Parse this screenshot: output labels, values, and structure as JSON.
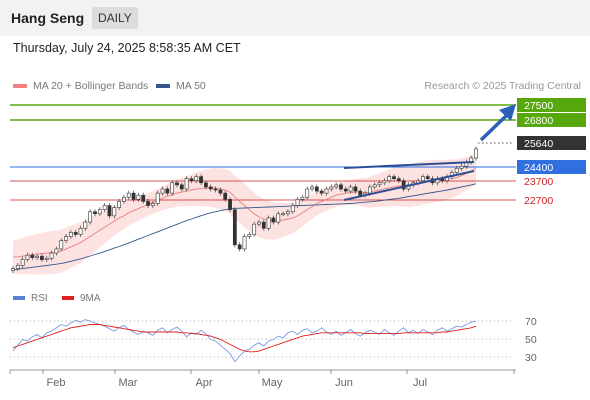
{
  "header": {
    "title": "Hang Seng",
    "timeframe": "DAILY"
  },
  "timestamp": "Thursday, July 24, 2025 8:58:35 AM CET",
  "legend": {
    "bollinger": {
      "label": "MA 20 + Bollinger Bands",
      "color": "#f08080"
    },
    "ma50": {
      "label": "MA 50",
      "color": "#34578c"
    }
  },
  "credit": "Research © 2025 Trading Central",
  "rsi_legend": {
    "rsi": {
      "label": "RSI",
      "color": "#5b7fd4"
    },
    "ma9": {
      "label": "9MA",
      "color": "#e02020"
    }
  },
  "price_levels": [
    {
      "value": "27500",
      "style": "green-box",
      "color": "#56a80d"
    },
    {
      "value": "26800",
      "style": "green-box",
      "color": "#56a80d"
    },
    {
      "value": "25640",
      "style": "dark-box",
      "color": "#333333"
    },
    {
      "value": "24400",
      "style": "blue-box",
      "color": "#2f6fe0"
    },
    {
      "value": "23700",
      "style": "red-text",
      "color": "#cc2222"
    },
    {
      "value": "22700",
      "style": "red-text",
      "color": "#cc2222"
    }
  ],
  "rsi_ticks": [
    "70",
    "50",
    "30"
  ],
  "x_axis": [
    "Feb",
    "Mar",
    "Apr",
    "May",
    "Jun",
    "Jul"
  ],
  "chart_data": {
    "type": "line",
    "close": [
      19850,
      20000,
      20300,
      20500,
      20380,
      20450,
      20280,
      20350,
      20600,
      20800,
      21200,
      21400,
      21600,
      21500,
      21800,
      22100,
      22600,
      22500,
      22700,
      22900,
      22400,
      22800,
      23100,
      23300,
      23500,
      23200,
      23400,
      23100,
      22900,
      23000,
      23500,
      23700,
      23500,
      24000,
      23900,
      23700,
      24200,
      24100,
      24300,
      24000,
      23800,
      23700,
      23650,
      23500,
      23200,
      22700,
      21000,
      20800,
      21400,
      21500,
      22000,
      22100,
      21800,
      22300,
      22100,
      22500,
      22500,
      22600,
      22900,
      23200,
      23300,
      23700,
      23800,
      23600,
      23500,
      23700,
      23800,
      23900,
      23700,
      23600,
      23800,
      23600,
      23400,
      23500,
      23800,
      23900,
      24000,
      24100,
      24300,
      24200,
      24100,
      23700,
      23900,
      24000,
      24100,
      24300,
      24200,
      24000,
      24200,
      24100,
      24300,
      24500,
      24700,
      24800,
      25000,
      25200,
      25640
    ],
    "ma20": [
      20400,
      20420,
      20450,
      20500,
      20520,
      20550,
      20580,
      20600,
      20620,
      20650,
      20700,
      20800,
      20900,
      21000,
      21100,
      21250,
      21400,
      21550,
      21700,
      21850,
      22000,
      22150,
      22300,
      22400,
      22550,
      22650,
      22750,
      22850,
      22950,
      23050,
      23150,
      23250,
      23350,
      23400,
      23500,
      23550,
      23600,
      23650,
      23700,
      23720,
      23750,
      23760,
      23750,
      23700,
      23650,
      23550,
      23300,
      23100,
      22900,
      22700,
      22500,
      22350,
      22250,
      22200,
      22150,
      22150,
      22200,
      22250,
      22300,
      22400,
      22550,
      22700,
      22850,
      23000,
      23100,
      23200,
      23300,
      23400,
      23450,
      23500,
      23520,
      23550,
      23550,
      23520,
      23550,
      23600,
      23650,
      23700,
      23750,
      23800,
      23850,
      23850,
      23850,
      23900,
      23950,
      24000,
      24050,
      24050,
      24100,
      24100,
      24150,
      24200,
      24250,
      24350,
      24450,
      24550,
      24700
    ],
    "ma50": [
      19800,
      19820,
      19850,
      19880,
      19910,
      19940,
      19970,
      20000,
      20030,
      20060,
      20100,
      20150,
      20200,
      20260,
      20320,
      20390,
      20460,
      20530,
      20600,
      20680,
      20760,
      20840,
      20920,
      21000,
      21090,
      21180,
      21270,
      21360,
      21450,
      21540,
      21630,
      21720,
      21810,
      21900,
      21990,
      22080,
      22170,
      22250,
      22330,
      22410,
      22480,
      22550,
      22600,
      22650,
      22700,
      22740,
      22760,
      22770,
      22780,
      22790,
      22800,
      22810,
      22820,
      22830,
      22840,
      22850,
      22860,
      22870,
      22880,
      22890,
      22900,
      22910,
      22920,
      22930,
      22940,
      22950,
      22960,
      22970,
      22980,
      22990,
      23000,
      23020,
      23040,
      23060,
      23080,
      23100,
      23130,
      23160,
      23190,
      23220,
      23250,
      23290,
      23330,
      23370,
      23410,
      23450,
      23490,
      23530,
      23570,
      23610,
      23650,
      23700,
      23750,
      23800,
      23850,
      23900,
      23950
    ],
    "rsi": [
      38,
      45,
      52,
      50,
      55,
      58,
      54,
      60,
      62,
      66,
      70,
      68,
      72,
      75,
      73,
      76,
      74,
      72,
      70,
      68,
      65,
      62,
      66,
      69,
      64,
      61,
      58,
      62,
      60,
      57,
      63,
      66,
      60,
      64,
      67,
      62,
      55,
      60,
      58,
      63,
      59,
      52,
      50,
      45,
      40,
      35,
      25,
      32,
      38,
      40,
      45,
      48,
      44,
      50,
      52,
      56,
      54,
      60,
      62,
      58,
      63,
      65,
      60,
      62,
      66,
      61,
      58,
      62,
      57,
      60,
      64,
      59,
      56,
      60,
      63,
      61,
      58,
      64,
      60,
      57,
      62,
      66,
      60,
      63,
      59,
      64,
      61,
      58,
      63,
      66,
      62,
      65,
      68,
      67,
      70,
      73,
      74
    ],
    "rsi9ma": [
      42,
      44,
      46,
      48,
      50,
      52,
      54,
      56,
      58,
      60,
      62,
      64,
      66,
      67,
      68,
      69,
      70,
      70,
      70,
      69,
      68,
      67,
      66,
      65,
      64,
      63,
      62,
      61,
      61,
      61,
      61,
      61,
      61,
      61,
      61,
      60,
      60,
      59,
      59,
      58,
      57,
      56,
      54,
      52,
      49,
      46,
      43,
      40,
      38,
      37,
      37,
      38,
      40,
      42,
      44,
      46,
      48,
      50,
      52,
      54,
      56,
      57,
      58,
      59,
      60,
      60,
      60,
      60,
      60,
      60,
      60,
      60,
      60,
      59,
      59,
      59,
      59,
      59,
      59,
      59,
      59,
      60,
      60,
      60,
      60,
      60,
      60,
      60,
      60,
      61,
      61,
      62,
      63,
      64,
      65,
      66,
      68
    ],
    "price_range": [
      19200,
      28200
    ],
    "rsi_range": [
      15,
      90
    ],
    "projection_target": 27500,
    "series_names": [
      "MA 20 + Bollinger Bands",
      "MA 50",
      "RSI",
      "9MA"
    ]
  }
}
